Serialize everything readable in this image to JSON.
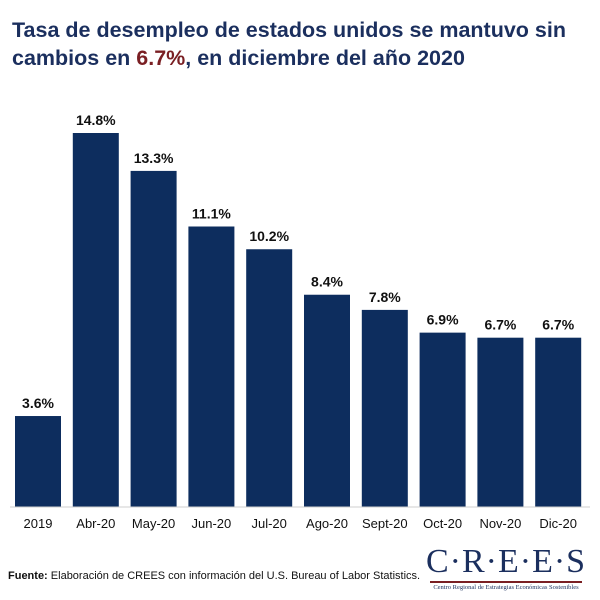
{
  "title": {
    "part1": "Tasa de desempleo de estados unidos se mantuvo sin cambios en ",
    "highlight": "6.7%",
    "part2": ", en diciembre del año 2020"
  },
  "colors": {
    "bar": "#0d2d5e",
    "title": "#1b2f5e",
    "highlight": "#7a1f23"
  },
  "chart_data": {
    "type": "bar",
    "categories": [
      "2019",
      "Abr-20",
      "May-20",
      "Jun-20",
      "Jul-20",
      "Ago-20",
      "Sept-20",
      "Oct-20",
      "Nov-20",
      "Dic-20"
    ],
    "values": [
      3.6,
      14.8,
      13.3,
      11.1,
      10.2,
      8.4,
      7.8,
      6.9,
      6.7,
      6.7
    ],
    "value_labels": [
      "3.6%",
      "14.8%",
      "13.3%",
      "11.1%",
      "10.2%",
      "8.4%",
      "7.8%",
      "6.9%",
      "6.7%",
      "6.7%"
    ],
    "ylim": [
      0,
      14.8
    ],
    "grid": false,
    "legend": "none"
  },
  "source": {
    "label": "Fuente:",
    "text": " Elaboración de CREES con información del U.S. Bureau of Labor Statistics."
  },
  "logo": {
    "word": "C·R·E·E·S",
    "subtitle": "Centro Regional de Estrategias Económicas Sostenibles"
  }
}
